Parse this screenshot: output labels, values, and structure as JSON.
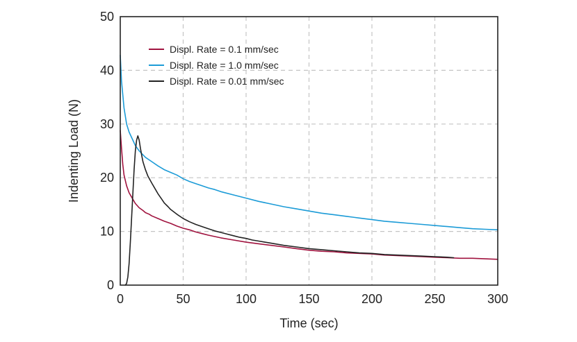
{
  "chart_data": {
    "type": "line",
    "title": "",
    "xlabel": "Time (sec)",
    "ylabel": "Indenting Load (N)",
    "xlim": [
      0,
      300
    ],
    "ylim": [
      0,
      50
    ],
    "xticks": [
      "0",
      "50",
      "100",
      "150",
      "200",
      "250",
      "300"
    ],
    "yticks": [
      "0",
      "10",
      "20",
      "30",
      "40",
      "50"
    ],
    "grid": true,
    "legend_position": "top-left",
    "series": [
      {
        "name": "Displ. Rate = 0.1 mm/sec",
        "color": "#a0123e",
        "x": [
          0,
          1,
          2,
          3,
          5,
          7,
          10,
          12,
          15,
          18,
          20,
          23,
          25,
          30,
          35,
          40,
          45,
          50,
          55,
          60,
          65,
          70,
          80,
          90,
          100,
          110,
          120,
          130,
          140,
          150,
          160,
          170,
          180,
          190,
          200,
          210,
          220,
          230,
          240,
          250,
          260,
          270,
          280,
          290,
          300
        ],
        "y": [
          28.8,
          25.5,
          22.5,
          20.5,
          18.5,
          17.2,
          16.0,
          15.2,
          14.4,
          13.9,
          13.5,
          13.2,
          12.9,
          12.4,
          11.9,
          11.5,
          11.0,
          10.6,
          10.3,
          9.9,
          9.6,
          9.3,
          8.8,
          8.4,
          8.0,
          7.7,
          7.4,
          7.1,
          6.8,
          6.5,
          6.3,
          6.2,
          6.0,
          5.9,
          5.8,
          5.6,
          5.5,
          5.4,
          5.3,
          5.2,
          5.1,
          5.0,
          5.0,
          4.9,
          4.8
        ]
      },
      {
        "name": "Displ. Rate = 1.0 mm/sec",
        "color": "#1b9bd7",
        "x": [
          0,
          1,
          2,
          3,
          5,
          7,
          10,
          12,
          15,
          20,
          25,
          30,
          35,
          40,
          45,
          50,
          55,
          60,
          65,
          70,
          75,
          80,
          90,
          100,
          110,
          120,
          130,
          140,
          150,
          160,
          170,
          180,
          190,
          200,
          210,
          220,
          230,
          240,
          250,
          260,
          270,
          280,
          290,
          300
        ],
        "y": [
          42.8,
          38.0,
          35.5,
          33.0,
          30.0,
          28.5,
          27.0,
          26.0,
          25.0,
          23.8,
          23.0,
          22.2,
          21.5,
          21.0,
          20.5,
          19.8,
          19.3,
          18.9,
          18.5,
          18.1,
          17.8,
          17.4,
          16.8,
          16.2,
          15.6,
          15.1,
          14.6,
          14.2,
          13.8,
          13.4,
          13.1,
          12.8,
          12.5,
          12.2,
          11.9,
          11.7,
          11.5,
          11.3,
          11.1,
          10.9,
          10.7,
          10.5,
          10.4,
          10.3
        ]
      },
      {
        "name": "Displ. Rate = 0.01 mm/sec",
        "color": "#222222",
        "x": [
          4,
          5,
          6,
          7,
          8,
          9,
          10,
          11,
          12,
          13,
          14,
          15,
          16,
          17,
          18,
          20,
          22,
          25,
          28,
          30,
          33,
          35,
          38,
          40,
          45,
          50,
          55,
          60,
          65,
          70,
          75,
          80,
          85,
          90,
          95,
          100,
          105,
          110,
          115,
          120,
          130,
          140,
          150,
          160,
          170,
          180,
          190,
          200,
          210,
          220,
          230,
          240,
          250,
          260,
          265
        ],
        "y": [
          0.0,
          0.3,
          1.5,
          4.0,
          8.0,
          12.5,
          17.0,
          21.5,
          25.0,
          27.0,
          27.8,
          27.0,
          25.5,
          24.2,
          23.0,
          21.5,
          20.3,
          19.0,
          17.8,
          17.0,
          16.0,
          15.3,
          14.6,
          14.1,
          13.2,
          12.4,
          11.8,
          11.3,
          10.9,
          10.5,
          10.1,
          9.8,
          9.5,
          9.2,
          8.9,
          8.7,
          8.4,
          8.2,
          8.0,
          7.8,
          7.4,
          7.1,
          6.8,
          6.6,
          6.4,
          6.2,
          6.0,
          5.9,
          5.7,
          5.6,
          5.5,
          5.4,
          5.3,
          5.2,
          5.1
        ]
      }
    ]
  }
}
